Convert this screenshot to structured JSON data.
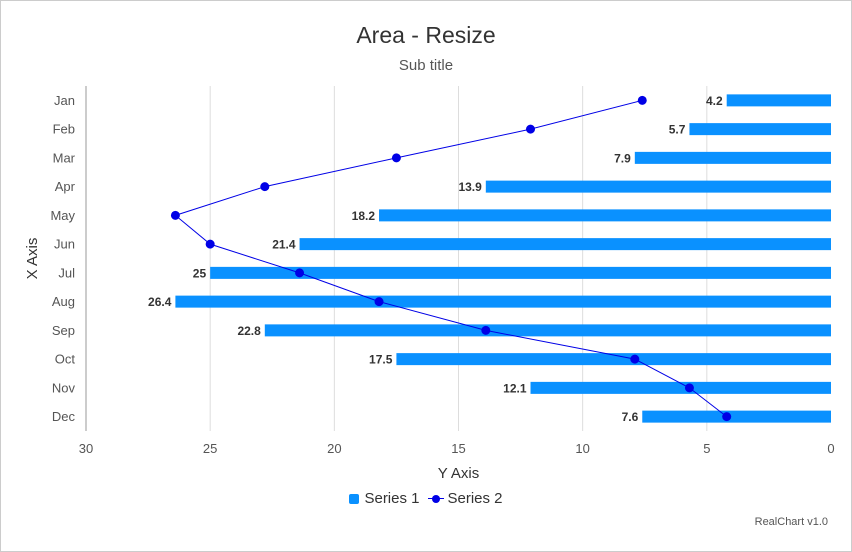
{
  "chart_data": {
    "type": "bar",
    "orientation": "horizontal",
    "title": "Area - Resize",
    "subtitle": "Sub title",
    "xlabel": "X Axis",
    "ylabel": "Y Axis",
    "categories": [
      "Jan",
      "Feb",
      "Mar",
      "Apr",
      "May",
      "Jun",
      "Jul",
      "Aug",
      "Sep",
      "Oct",
      "Nov",
      "Dec"
    ],
    "ylim": [
      0,
      30
    ],
    "y_ticks": [
      "30",
      "25",
      "20",
      "15",
      "10",
      "5",
      "0"
    ],
    "y_reversed": true,
    "grid": true,
    "legend_position": "bottom",
    "series": [
      {
        "name": "Series 1",
        "type": "bar",
        "color": "#0a91ff",
        "values": [
          4.2,
          5.7,
          7.9,
          13.9,
          18.2,
          21.4,
          25,
          26.4,
          22.8,
          17.5,
          12.1,
          7.6
        ],
        "data_labels": [
          "4.2",
          "5.7",
          "7.9",
          "13.9",
          "18.2",
          "21.4",
          "25",
          "26.4",
          "22.8",
          "17.5",
          "12.1",
          "7.6"
        ]
      },
      {
        "name": "Series 2",
        "type": "line",
        "color": "#0000e6",
        "values": [
          7.6,
          12.1,
          17.5,
          22.8,
          26.4,
          25,
          21.4,
          18.2,
          13.9,
          7.9,
          5.7,
          4.2
        ]
      }
    ]
  },
  "credits": "RealChart v1.0"
}
